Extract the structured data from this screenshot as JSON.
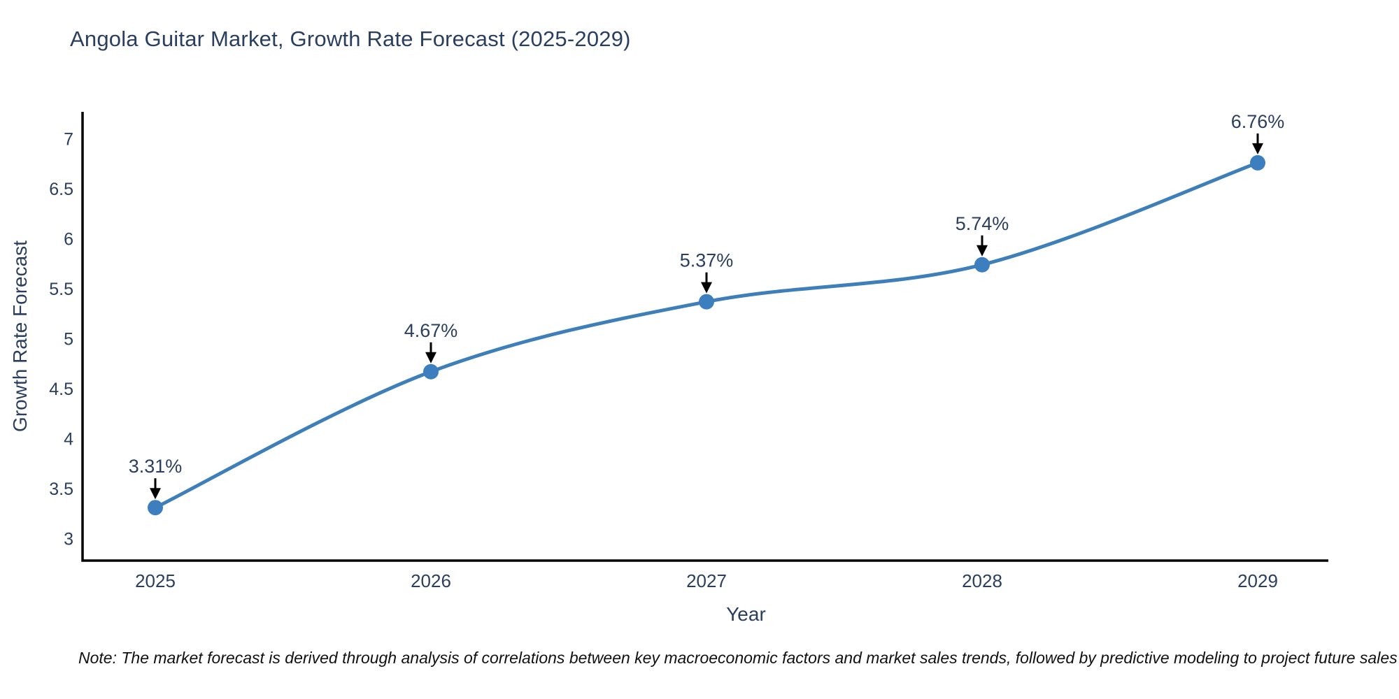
{
  "title": "Angola Guitar Market, Growth Rate Forecast (2025-2029)",
  "note": "Note: The market forecast is derived through analysis of correlations between key macroeconomic factors and market sales trends, followed by predictive modeling to project future sales",
  "chart_data": {
    "type": "line",
    "title": "Angola Guitar Market, Growth Rate Forecast (2025-2029)",
    "xlabel": "Year",
    "ylabel": "Growth Rate Forecast",
    "categories": [
      "2025",
      "2026",
      "2027",
      "2028",
      "2029"
    ],
    "series": [
      {
        "name": "Growth Rate Forecast",
        "values": [
          3.31,
          4.67,
          5.37,
          5.74,
          6.76
        ]
      }
    ],
    "point_labels": [
      "3.31%",
      "4.67%",
      "5.37%",
      "5.74%",
      "6.76%"
    ],
    "y_ticks": [
      3,
      3.5,
      4,
      4.5,
      5,
      5.5,
      6,
      6.5,
      7
    ],
    "ylim": [
      2.78,
      7.27
    ],
    "grid": false,
    "legend_position": "none",
    "line_shape": "spline",
    "colors": {
      "line": "#3e7fba",
      "marker": "#3d7ebf",
      "axis": "#000000",
      "tick_text": "#2a3f5f",
      "axis_title_text": "#2a3f5f",
      "annotation_text": "#2a3f5f",
      "annotation_arrow": "#000000",
      "background": "#ffffff"
    }
  }
}
